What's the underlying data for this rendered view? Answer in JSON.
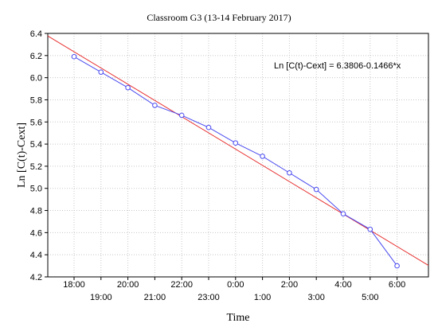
{
  "chart_data": {
    "type": "line",
    "title": "Classroom G3 (13-14 February 2017)",
    "xlabel": "Time",
    "ylabel": "Ln [C(t)-Cext]",
    "ylim": [
      4.2,
      6.4
    ],
    "yticks": [
      "4.2",
      "4.4",
      "4.6",
      "4.8",
      "5.0",
      "5.2",
      "5.4",
      "5.6",
      "5.8",
      "6.0",
      "6.2",
      "6.4"
    ],
    "x_tick_labels": [
      "18:00",
      "19:00",
      "20:00",
      "21:00",
      "22:00",
      "23:00",
      "0:00",
      "1:00",
      "2:00",
      "3:00",
      "4:00",
      "5:00",
      "6:00"
    ],
    "grid": true,
    "series": [
      {
        "x": [
          "18:00",
          "19:00",
          "20:00",
          "21:00",
          "22:00",
          "23:00",
          "0:00",
          "1:00",
          "2:00",
          "3:00",
          "4:00",
          "5:00",
          "6:00"
        ],
        "values": [
          6.19,
          6.05,
          5.91,
          5.75,
          5.66,
          5.55,
          5.41,
          5.29,
          5.14,
          4.99,
          4.77,
          4.63,
          4.3
        ],
        "color": "#4a4af0"
      }
    ],
    "fit_line": {
      "intercept": 6.3806,
      "slope": -0.1466,
      "color": "#e83030",
      "equation_label": "Ln [C(t)-Cext] = 6.3806-0.1466*x"
    }
  }
}
